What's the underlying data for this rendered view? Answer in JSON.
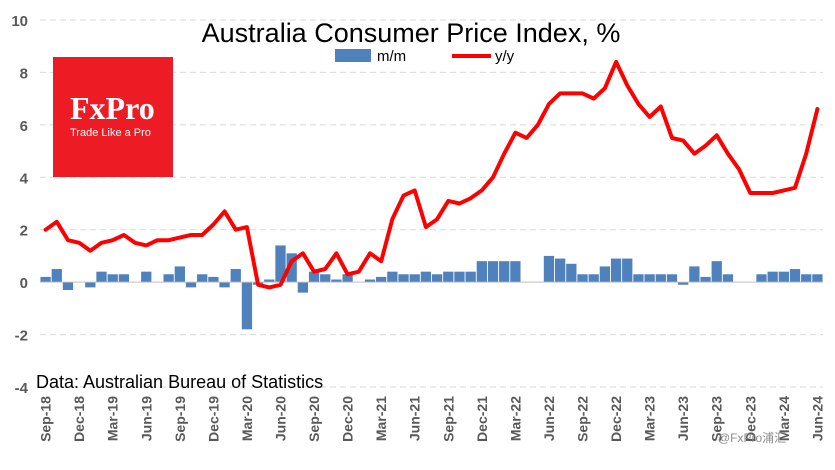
{
  "chart_data": {
    "type": "bar+line",
    "title": "Australia Consumer Price Index, %",
    "source_note": "Data: Australian Bureau of Statistics",
    "ylim": [
      -4,
      10
    ],
    "yticks": [
      -4,
      -2,
      0,
      2,
      4,
      6,
      8,
      10
    ],
    "grid": "horizontal",
    "legend_position": "top-center",
    "x": [
      "Sep-18",
      "Oct-18",
      "Nov-18",
      "Dec-18",
      "Jan-19",
      "Feb-19",
      "Mar-19",
      "Apr-19",
      "May-19",
      "Jun-19",
      "Jul-19",
      "Aug-19",
      "Sep-19",
      "Oct-19",
      "Nov-19",
      "Dec-19",
      "Jan-20",
      "Feb-20",
      "Mar-20",
      "Apr-20",
      "May-20",
      "Jun-20",
      "Jul-20",
      "Aug-20",
      "Sep-20",
      "Oct-20",
      "Nov-20",
      "Dec-20",
      "Jan-21",
      "Feb-21",
      "Mar-21",
      "Apr-21",
      "May-21",
      "Jun-21",
      "Jul-21",
      "Aug-21",
      "Sep-21",
      "Oct-21",
      "Nov-21",
      "Dec-21",
      "Jan-22",
      "Feb-22",
      "Mar-22",
      "Apr-22",
      "May-22",
      "Jun-22",
      "Jul-22",
      "Aug-22",
      "Sep-22",
      "Oct-22",
      "Nov-22",
      "Dec-22",
      "Jan-23",
      "Feb-23",
      "Mar-23",
      "Apr-23",
      "May-23",
      "Jun-23",
      "Jul-23",
      "Aug-23",
      "Sep-23",
      "Oct-23",
      "Nov-23",
      "Dec-23",
      "Jan-24",
      "Feb-24",
      "Mar-24",
      "Apr-24",
      "May-24",
      "Jun-24"
    ],
    "xtick_labels": [
      "Sep-18",
      "Dec-18",
      "Mar-19",
      "Jun-19",
      "Sep-19",
      "Dec-19",
      "Mar-20",
      "Jun-20",
      "Sep-20",
      "Dec-20",
      "Mar-21",
      "Jun-21",
      "Sep-21",
      "Dec-21",
      "Mar-22",
      "Jun-22",
      "Sep-22",
      "Dec-22",
      "Mar-23",
      "Jun-23",
      "Sep-23",
      "Dec-23",
      "Mar-24",
      "Jun-24"
    ],
    "series": [
      {
        "name": "m/m",
        "kind": "bar",
        "color": "#4f81bd",
        "values": [
          0.2,
          0.5,
          -0.3,
          0.0,
          -0.2,
          0.4,
          0.3,
          0.3,
          0.0,
          0.4,
          0.0,
          0.3,
          0.6,
          -0.2,
          0.3,
          0.2,
          -0.2,
          0.5,
          -1.8,
          -0.1,
          0.1,
          1.4,
          1.1,
          -0.4,
          0.4,
          0.3,
          0.1,
          0.3,
          0.0,
          0.1,
          0.2,
          0.4,
          0.3,
          0.3,
          0.4,
          0.3,
          0.4,
          0.4,
          0.4,
          0.8,
          0.8,
          0.8,
          0.8,
          0.0,
          0.0,
          1.0,
          0.9,
          0.7,
          0.3,
          0.3,
          0.6,
          0.9,
          0.9,
          0.3,
          0.3,
          0.3,
          0.3,
          -0.1,
          0.6,
          0.2,
          0.8,
          0.3,
          0.0,
          0.0,
          0.3,
          0.4,
          0.4,
          0.5,
          0.3,
          0.3
        ]
      },
      {
        "name": "y/y",
        "kind": "line",
        "color": "#ff0000",
        "values": [
          2.0,
          2.3,
          1.6,
          1.5,
          1.2,
          1.5,
          1.6,
          1.8,
          1.5,
          1.4,
          1.6,
          1.6,
          1.7,
          1.8,
          1.8,
          2.2,
          2.7,
          2.0,
          2.1,
          -0.1,
          -0.2,
          -0.1,
          0.8,
          1.1,
          0.4,
          0.5,
          1.1,
          0.3,
          0.4,
          1.1,
          0.8,
          2.4,
          3.3,
          3.5,
          2.1,
          2.4,
          3.1,
          3.0,
          3.2,
          3.5,
          4.0,
          4.9,
          5.7,
          5.5,
          6.0,
          6.8,
          7.2,
          7.2,
          7.2,
          7.0,
          7.4,
          8.4,
          7.5,
          6.8,
          6.3,
          6.7,
          5.5,
          5.4,
          4.9,
          5.2,
          5.6,
          4.9,
          4.3,
          3.4,
          3.4,
          3.4,
          3.5,
          3.6,
          4.9,
          6.6
        ]
      }
    ]
  },
  "logo": {
    "brand": "FxPro",
    "tagline": "Trade Like a Pro",
    "color": "#ed1c24"
  },
  "watermark": "@FxPro浦汇"
}
